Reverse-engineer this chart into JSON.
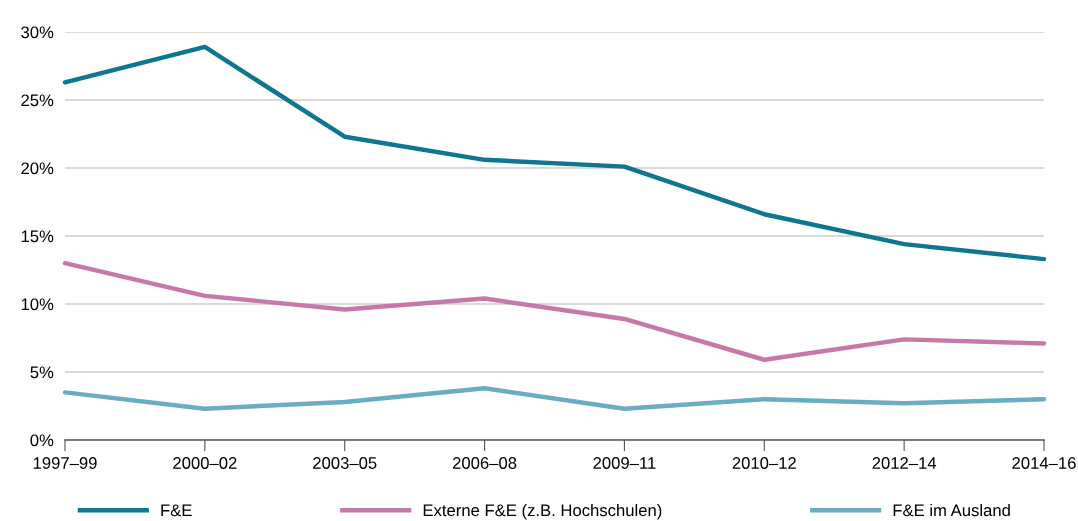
{
  "chart_data": {
    "type": "line",
    "categories": [
      "1997–99",
      "2000–02",
      "2003–05",
      "2006–08",
      "2009–11",
      "2010–12",
      "2012–14",
      "2014–16"
    ],
    "series": [
      {
        "name": "F&E",
        "color": "#0e7690",
        "values": [
          26.3,
          28.9,
          22.3,
          20.6,
          20.1,
          16.6,
          14.4,
          13.3
        ]
      },
      {
        "name": "Externe F&E (z.B. Hochschulen)",
        "color": "#c678a8",
        "values": [
          13.0,
          10.6,
          9.6,
          10.4,
          8.9,
          5.9,
          7.4,
          7.1
        ]
      },
      {
        "name": "F&E im Ausland",
        "color": "#6aadc3",
        "values": [
          3.5,
          2.3,
          2.8,
          3.8,
          2.3,
          3.0,
          2.7,
          3.0
        ]
      }
    ],
    "ylim": [
      0,
      30
    ],
    "yticks": [
      {
        "value": 0,
        "label": "0%"
      },
      {
        "value": 5,
        "label": "5%"
      },
      {
        "value": 10,
        "label": "10%"
      },
      {
        "value": 15,
        "label": "15%"
      },
      {
        "value": 20,
        "label": "20%"
      },
      {
        "value": 25,
        "label": "25%"
      },
      {
        "value": 30,
        "label": "30%"
      }
    ],
    "grid": "y",
    "legend": "bottom",
    "marker": "none",
    "line_style": "solid"
  }
}
